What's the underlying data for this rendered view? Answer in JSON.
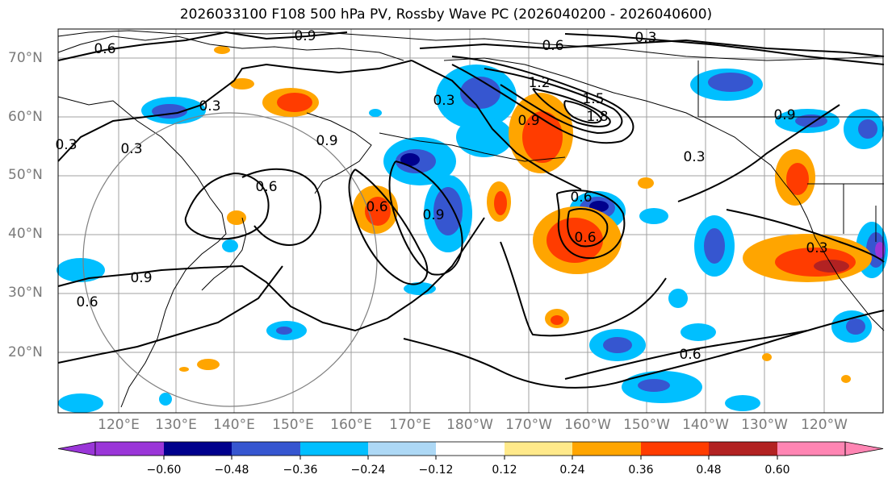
{
  "title": "2026033100 F108 500 hPa PV, Rossby Wave PC (2026040200 - 2026040600)",
  "lat_labels": [
    "70°N",
    "60°N",
    "50°N",
    "40°N",
    "30°N",
    "20°N"
  ],
  "lon_labels": [
    "120°E",
    "130°E",
    "140°E",
    "150°E",
    "160°E",
    "170°E",
    "180°W",
    "170°W",
    "160°W",
    "150°W",
    "140°W",
    "130°W",
    "120°W"
  ],
  "colorbar": {
    "ticks": [
      "−0.60",
      "−0.48",
      "−0.36",
      "−0.24",
      "−0.12",
      "0.12",
      "0.24",
      "0.36",
      "0.48",
      "0.60"
    ],
    "colors": [
      "#9a36d8",
      "#00008c",
      "#3656d0",
      "#00bfff",
      "#add8f5",
      "#ffffff",
      "#ffe98a",
      "#ffa500",
      "#ff3c00",
      "#b22222",
      "#ff85b3"
    ]
  },
  "pv_contour_labels": [
    "0.9",
    "0.6",
    "0.3",
    "0.6",
    "0.9",
    "0.6",
    "0.9",
    "0.3",
    "0.6",
    "0.9",
    "1.2",
    "1.5",
    "1.8",
    "0.6",
    "0.3",
    "0.6",
    "0.9",
    "0.6",
    "0.9",
    "0.3",
    "0.3",
    "0.3",
    "0.3",
    "0.6"
  ],
  "legend_colors": {
    "contour": "#000000",
    "coast": "#000000",
    "grid": "#a0a0a0",
    "circle": "#808080"
  }
}
